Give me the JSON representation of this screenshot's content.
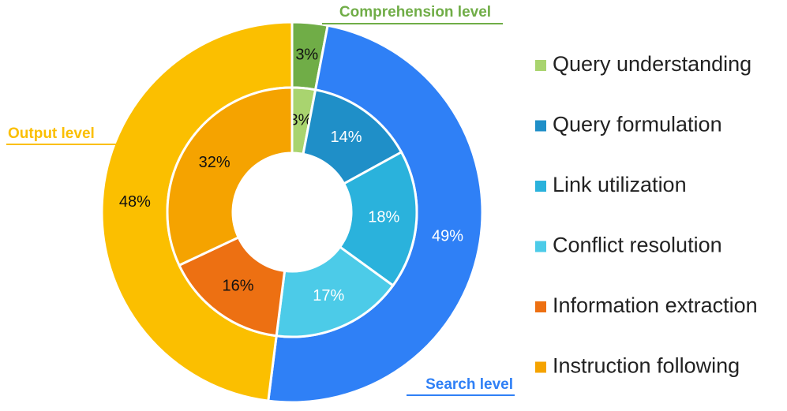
{
  "chart_data": {
    "type": "donut",
    "rings": [
      {
        "categories": [
          "Comprehension level",
          "Search level",
          "Output level"
        ],
        "values": [
          3,
          49,
          48
        ],
        "value_labels": [
          "3%",
          "49%",
          "48%"
        ],
        "colors": [
          "#70ad47",
          "#2f80f6",
          "#fbbf00"
        ],
        "label_colors": [
          "#111111",
          "#ffffff",
          "#111111"
        ]
      },
      {
        "categories": [
          "Query understanding",
          "Query formulation",
          "Link utilization",
          "Conflict resolution",
          "Information extraction",
          "Instruction following"
        ],
        "values": [
          3,
          14,
          18,
          17,
          16,
          32
        ],
        "value_labels": [
          "3%",
          "14%",
          "18%",
          "17%",
          "16%",
          "32%"
        ],
        "colors": [
          "#a9d46f",
          "#1f8fc8",
          "#2ab2dc",
          "#4ccbe8",
          "#ed7012",
          "#f5a300"
        ],
        "label_colors": [
          "#111111",
          "#ffffff",
          "#ffffff",
          "#ffffff",
          "#111111",
          "#111111"
        ]
      }
    ],
    "legend": "right"
  }
}
